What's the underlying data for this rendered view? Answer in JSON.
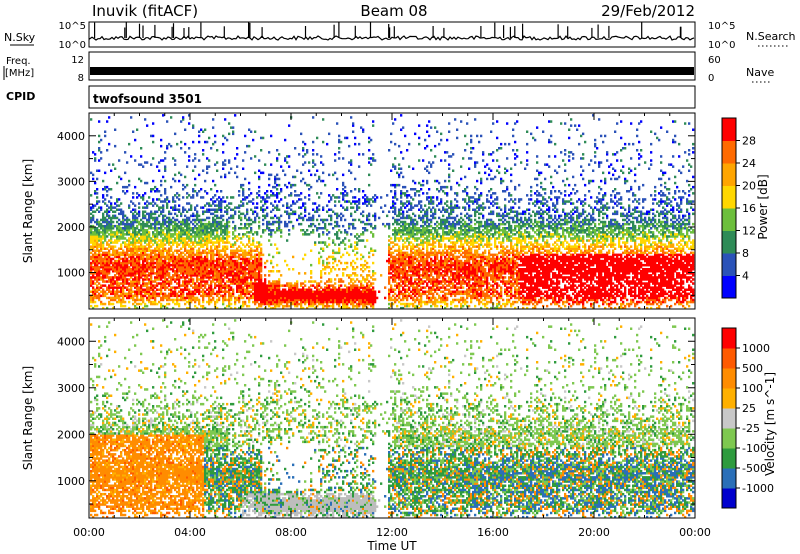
{
  "header": {
    "station": "Inuvik (fitACF)",
    "beam": "Beam 08",
    "date": "29/Feb/2012"
  },
  "strip_labels": {
    "nsky": "N.Sky",
    "nsky_ticks": [
      "10^5",
      "10^0"
    ],
    "nsearch": "N.Search",
    "freq_line1": "Freq.",
    "freq_line2": "[MHz]",
    "freq_ticks": [
      "12",
      "8"
    ],
    "nave": "Nave",
    "nave_ticks": [
      "60",
      "0"
    ],
    "cpid": "CPID",
    "cpid_value": "twofsound 3501"
  },
  "colors": {
    "power_scale": [
      "#0000ff",
      "#2a52b8",
      "#2e8b57",
      "#6cbf3c",
      "#ffd700",
      "#ffa500",
      "#ff6a00",
      "#ff0000"
    ],
    "velocity_scale": [
      "#ff0000",
      "#ff5a00",
      "#ff8c00",
      "#ffb000",
      "#c8c8c8",
      "#7ec850",
      "#2e9b3e",
      "#2a6fb8",
      "#0000cd"
    ],
    "ground_scatter": "#bdbdbd"
  },
  "chart_data": [
    {
      "type": "heatmap",
      "panel": "power",
      "xlabel": "",
      "ylabel": "Slant Range [km]",
      "yticks": [
        "1000",
        "2000",
        "3000",
        "4000"
      ],
      "ylim": [
        200,
        4500
      ],
      "colorbar_label": "Power [dB]",
      "colorbar_ticks": [
        "4",
        "8",
        "12",
        "16",
        "20",
        "24",
        "28"
      ],
      "colorbar_range": [
        0,
        32
      ]
    },
    {
      "type": "heatmap",
      "panel": "velocity",
      "xlabel": "Time UT",
      "ylabel": "Slant Range [km]",
      "yticks": [
        "1000",
        "2000",
        "3000",
        "4000"
      ],
      "ylim": [
        200,
        4500
      ],
      "xticks": [
        "00:00",
        "04:00",
        "08:00",
        "12:00",
        "16:00",
        "20:00",
        "00:00"
      ],
      "colorbar_label": "Velocity [m s^-1]",
      "colorbar_ticks": [
        "1000",
        "500",
        "100",
        "25",
        "-25",
        "-100",
        "-500",
        "-1000"
      ]
    }
  ]
}
